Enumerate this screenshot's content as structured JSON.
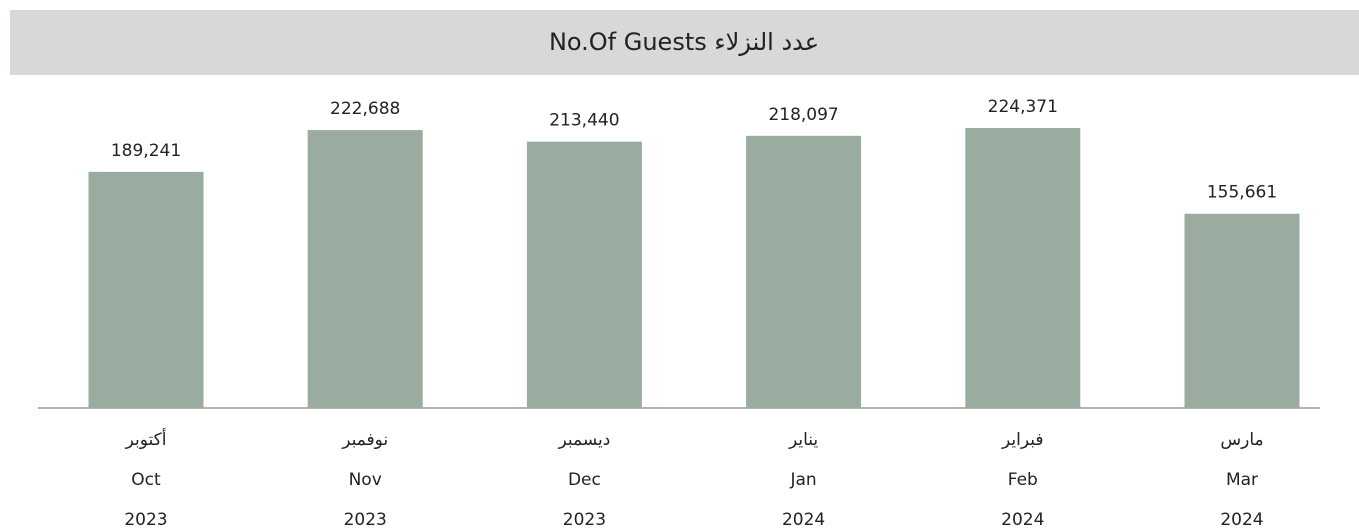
{
  "chart_data": {
    "type": "bar",
    "title": "No.Of Guests عدد النزلاء",
    "categories": [
      [
        "أكتوبر",
        "Oct",
        "2023"
      ],
      [
        "نوفمبر",
        "Nov",
        "2023"
      ],
      [
        "ديسمبر",
        "Dec",
        "2023"
      ],
      [
        "يناير",
        "Jan",
        "2024"
      ],
      [
        "فبراير",
        "Feb",
        "2024"
      ],
      [
        "مارس",
        "Mar",
        "2024"
      ]
    ],
    "values": [
      189241,
      222688,
      213440,
      218097,
      224371,
      155661
    ],
    "value_labels": [
      "189,241",
      "222,688",
      "213,440",
      "218,097",
      "224,371",
      "155,661"
    ],
    "color": "#9aaba0"
  }
}
